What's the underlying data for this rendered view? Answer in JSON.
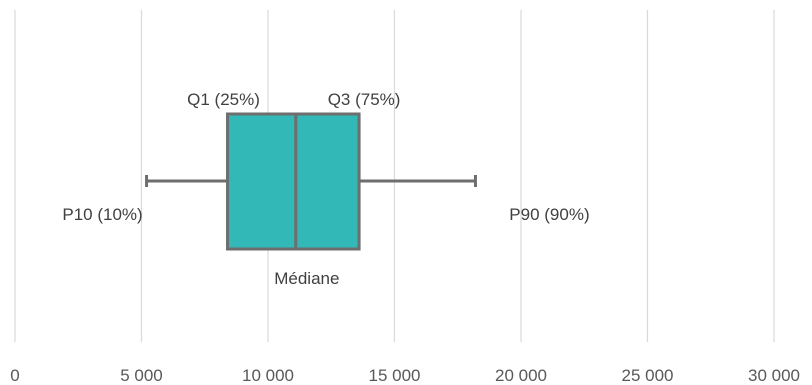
{
  "chart_data": {
    "type": "boxplot",
    "title": "",
    "xlabel": "",
    "ylabel": "",
    "xlim": [
      0,
      30000
    ],
    "x_ticks": [
      0,
      5000,
      10000,
      15000,
      20000,
      25000,
      30000
    ],
    "x_tick_labels": [
      "0",
      "5 000",
      "10 000",
      "15 000",
      "20 000",
      "25 000",
      "30 000"
    ],
    "grid": "vertical",
    "box": {
      "p10": 5200,
      "q1": 8400,
      "median": 11100,
      "q3": 13600,
      "p90": 18200
    },
    "annotations": {
      "q1": "Q1 (25%)",
      "q3": "Q3 (75%)",
      "p10": "P10 (10%)",
      "p90": "P90 (90%)",
      "median": "Médiane"
    },
    "colors": {
      "box_fill": "#33b8b8",
      "box_stroke": "#6e6e6e",
      "whisker": "#6e6e6e",
      "grid": "#d9d9d9",
      "tick_text": "#595959",
      "annotation_text": "#404040"
    }
  }
}
